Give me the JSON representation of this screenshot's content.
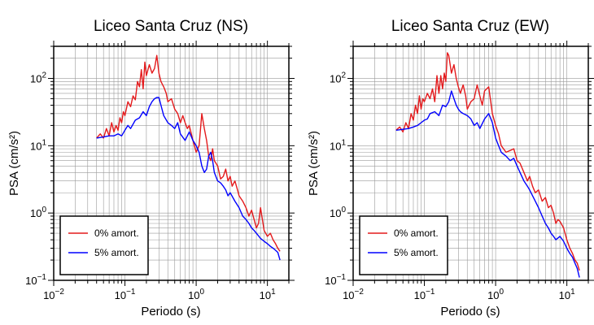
{
  "chart_data": [
    {
      "type": "line",
      "title": "Liceo Santa Cruz (NS)",
      "xlabel": "Periodo (s)",
      "ylabel": "PSA (cm/s²)",
      "xscale": "log",
      "yscale": "log",
      "xlim": [
        0.01,
        20
      ],
      "ylim": [
        0.1,
        300
      ],
      "xticks": [
        {
          "base": "10",
          "exp": "−2"
        },
        {
          "base": "10",
          "exp": "−1"
        },
        {
          "base": "10",
          "exp": "0"
        },
        {
          "base": "10",
          "exp": "1"
        }
      ],
      "yticks": [
        {
          "base": "10",
          "exp": "−1"
        },
        {
          "base": "10",
          "exp": "0"
        },
        {
          "base": "10",
          "exp": "1"
        },
        {
          "base": "10",
          "exp": "2"
        }
      ],
      "grid": true,
      "legend_position": "bottom-left",
      "series": [
        {
          "name": "0% amort.",
          "color": "#e41a1c",
          "x": [
            0.04,
            0.045,
            0.05,
            0.055,
            0.06,
            0.065,
            0.07,
            0.075,
            0.08,
            0.085,
            0.09,
            0.095,
            0.1,
            0.11,
            0.12,
            0.13,
            0.14,
            0.15,
            0.16,
            0.17,
            0.18,
            0.19,
            0.2,
            0.22,
            0.24,
            0.26,
            0.28,
            0.3,
            0.32,
            0.35,
            0.38,
            0.4,
            0.45,
            0.5,
            0.55,
            0.6,
            0.65,
            0.7,
            0.75,
            0.8,
            0.9,
            1.0,
            1.1,
            1.2,
            1.3,
            1.4,
            1.5,
            1.6,
            1.7,
            1.8,
            2.0,
            2.2,
            2.4,
            2.6,
            2.8,
            3.0,
            3.2,
            3.5,
            3.8,
            4.0,
            4.5,
            5.0,
            5.5,
            6.0,
            6.5,
            7.0,
            7.5,
            8.0,
            9.0,
            10.0,
            11.0,
            12.0,
            13.0,
            14.0,
            15.0
          ],
          "y": [
            13,
            15,
            13,
            18,
            14,
            22,
            16,
            20,
            17,
            26,
            22,
            32,
            28,
            45,
            38,
            55,
            48,
            90,
            75,
            135,
            70,
            175,
            110,
            160,
            120,
            140,
            220,
            120,
            90,
            75,
            60,
            45,
            50,
            35,
            30,
            22,
            28,
            22,
            18,
            20,
            12,
            8,
            10,
            30,
            18,
            12,
            7,
            6,
            9,
            6,
            5,
            3.2,
            3.5,
            4.5,
            3,
            3.5,
            2.5,
            3,
            2.2,
            1.8,
            1.5,
            1.2,
            0.9,
            1.1,
            0.8,
            0.6,
            0.7,
            1.2,
            0.55,
            0.45,
            0.5,
            0.4,
            0.35,
            0.3,
            0.27
          ]
        },
        {
          "name": "5% amort.",
          "color": "#0000ff",
          "x": [
            0.04,
            0.05,
            0.06,
            0.07,
            0.08,
            0.09,
            0.1,
            0.11,
            0.12,
            0.14,
            0.16,
            0.18,
            0.2,
            0.22,
            0.24,
            0.26,
            0.28,
            0.3,
            0.32,
            0.35,
            0.4,
            0.45,
            0.5,
            0.55,
            0.6,
            0.7,
            0.8,
            0.9,
            1.0,
            1.1,
            1.2,
            1.3,
            1.4,
            1.5,
            1.6,
            1.7,
            1.8,
            2.0,
            2.2,
            2.4,
            2.6,
            2.8,
            3.0,
            3.5,
            4.0,
            4.5,
            5.0,
            5.5,
            6.0,
            6.5,
            7.0,
            8.0,
            9.0,
            10.0,
            11.0,
            12.0,
            13.0,
            14.0,
            15.0
          ],
          "y": [
            13,
            13.5,
            14,
            14,
            15,
            14,
            17,
            20,
            18,
            24,
            26,
            32,
            28,
            38,
            45,
            50,
            52,
            52,
            40,
            28,
            22,
            20,
            18,
            22,
            15,
            12,
            16,
            12,
            10,
            8,
            5,
            4,
            4.5,
            7,
            8,
            6,
            4,
            3,
            2.8,
            2.5,
            2.2,
            1.8,
            2,
            1.5,
            1.2,
            0.9,
            0.8,
            0.7,
            0.6,
            0.55,
            0.5,
            0.42,
            0.38,
            0.35,
            0.32,
            0.3,
            0.28,
            0.26,
            0.2
          ]
        }
      ]
    },
    {
      "type": "line",
      "title": "Liceo Santa Cruz (EW)",
      "xlabel": "Periodo (s)",
      "ylabel": "PSA (cm/s²)",
      "xscale": "log",
      "yscale": "log",
      "xlim": [
        0.01,
        20
      ],
      "ylim": [
        0.1,
        300
      ],
      "xticks": [
        {
          "base": "10",
          "exp": "−2"
        },
        {
          "base": "10",
          "exp": "−1"
        },
        {
          "base": "10",
          "exp": "0"
        },
        {
          "base": "10",
          "exp": "1"
        }
      ],
      "yticks": [
        {
          "base": "10",
          "exp": "−1"
        },
        {
          "base": "10",
          "exp": "0"
        },
        {
          "base": "10",
          "exp": "1"
        },
        {
          "base": "10",
          "exp": "2"
        }
      ],
      "grid": true,
      "legend_position": "bottom-left",
      "series": [
        {
          "name": "0% amort.",
          "color": "#e41a1c",
          "x": [
            0.04,
            0.045,
            0.05,
            0.055,
            0.06,
            0.065,
            0.07,
            0.075,
            0.08,
            0.085,
            0.09,
            0.095,
            0.1,
            0.11,
            0.12,
            0.13,
            0.14,
            0.15,
            0.16,
            0.17,
            0.18,
            0.19,
            0.2,
            0.21,
            0.22,
            0.24,
            0.26,
            0.28,
            0.3,
            0.32,
            0.35,
            0.38,
            0.4,
            0.45,
            0.5,
            0.55,
            0.6,
            0.65,
            0.7,
            0.75,
            0.8,
            0.9,
            1.0,
            1.1,
            1.2,
            1.4,
            1.6,
            1.8,
            2.0,
            2.2,
            2.5,
            2.8,
            3.0,
            3.3,
            3.6,
            4.0,
            4.5,
            5.0,
            5.5,
            6.0,
            6.5,
            7.0,
            7.5,
            8.0,
            9.0,
            10.0,
            11.0,
            12.0,
            13.0,
            14.0,
            15.0
          ],
          "y": [
            17,
            19,
            16,
            22,
            18,
            30,
            24,
            40,
            30,
            55,
            35,
            50,
            45,
            60,
            50,
            70,
            45,
            110,
            60,
            110,
            70,
            120,
            90,
            240,
            220,
            120,
            160,
            100,
            75,
            60,
            80,
            55,
            35,
            45,
            50,
            80,
            55,
            40,
            65,
            70,
            75,
            30,
            20,
            15,
            10,
            8,
            8.5,
            9,
            6,
            5.5,
            4,
            3,
            3.5,
            2.5,
            2,
            2.2,
            1.5,
            1.7,
            1.2,
            1.3,
            1.0,
            0.7,
            0.8,
            0.75,
            0.6,
            0.4,
            0.3,
            0.25,
            0.2,
            0.18,
            0.14
          ]
        },
        {
          "name": "5% amort.",
          "color": "#0000ff",
          "x": [
            0.04,
            0.05,
            0.06,
            0.07,
            0.08,
            0.09,
            0.1,
            0.11,
            0.12,
            0.14,
            0.16,
            0.18,
            0.2,
            0.22,
            0.24,
            0.26,
            0.28,
            0.3,
            0.32,
            0.35,
            0.4,
            0.45,
            0.5,
            0.55,
            0.6,
            0.7,
            0.8,
            0.9,
            1.0,
            1.1,
            1.2,
            1.4,
            1.6,
            1.8,
            2.0,
            2.2,
            2.5,
            2.8,
            3.0,
            3.5,
            4.0,
            4.5,
            5.0,
            5.5,
            6.0,
            6.5,
            7.0,
            8.0,
            9.0,
            10.0,
            11.0,
            12.0,
            13.0,
            14.0,
            15.0
          ],
          "y": [
            17,
            17.5,
            18,
            19,
            20,
            22,
            24,
            25,
            30,
            32,
            28,
            40,
            38,
            45,
            65,
            50,
            40,
            35,
            32,
            30,
            28,
            25,
            20,
            22,
            18,
            25,
            30,
            22,
            13,
            10,
            8,
            7,
            6,
            6.5,
            5,
            4,
            3,
            2.5,
            2.2,
            1.6,
            1.2,
            0.9,
            0.7,
            0.6,
            0.5,
            0.45,
            0.4,
            0.45,
            0.38,
            0.3,
            0.25,
            0.22,
            0.18,
            0.15,
            0.11
          ]
        }
      ]
    }
  ]
}
